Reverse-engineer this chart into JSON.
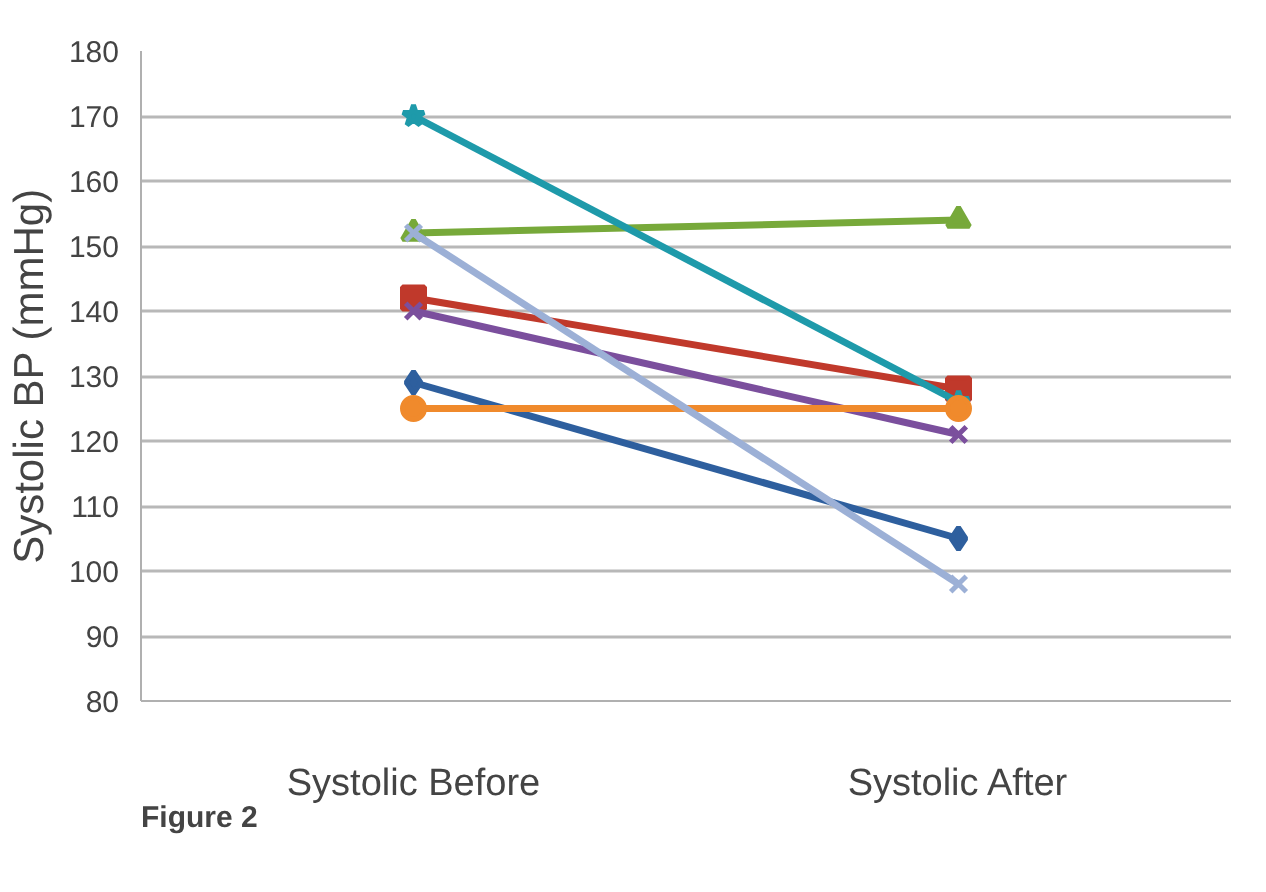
{
  "chart_data": {
    "type": "line",
    "ylabel": "Systolic BP (mmHg)",
    "categories": [
      "Systolic Before",
      "Systolic After"
    ],
    "series": [
      {
        "color": "#2e5f9e",
        "values": [
          129,
          105
        ],
        "marker": "diamond"
      },
      {
        "color": "#c0392b",
        "values": [
          142,
          128
        ],
        "marker": "square"
      },
      {
        "color": "#77a93a",
        "values": [
          152,
          154
        ],
        "marker": "triangle"
      },
      {
        "color": "#7b4f9d",
        "values": [
          140,
          121
        ],
        "marker": "cross"
      },
      {
        "color": "#1e9aaa",
        "values": [
          170,
          126
        ],
        "marker": "star"
      },
      {
        "color": "#f08a2c",
        "values": [
          125,
          125
        ],
        "marker": "circle"
      },
      {
        "color": "#9cb0d6",
        "values": [
          152,
          98
        ],
        "marker": "cross"
      }
    ],
    "ylim": [
      80,
      180
    ],
    "yticks": [
      80,
      90,
      100,
      110,
      120,
      130,
      140,
      150,
      160,
      170,
      180
    ],
    "grid": "y",
    "annotations": [
      "Figure 2"
    ]
  }
}
